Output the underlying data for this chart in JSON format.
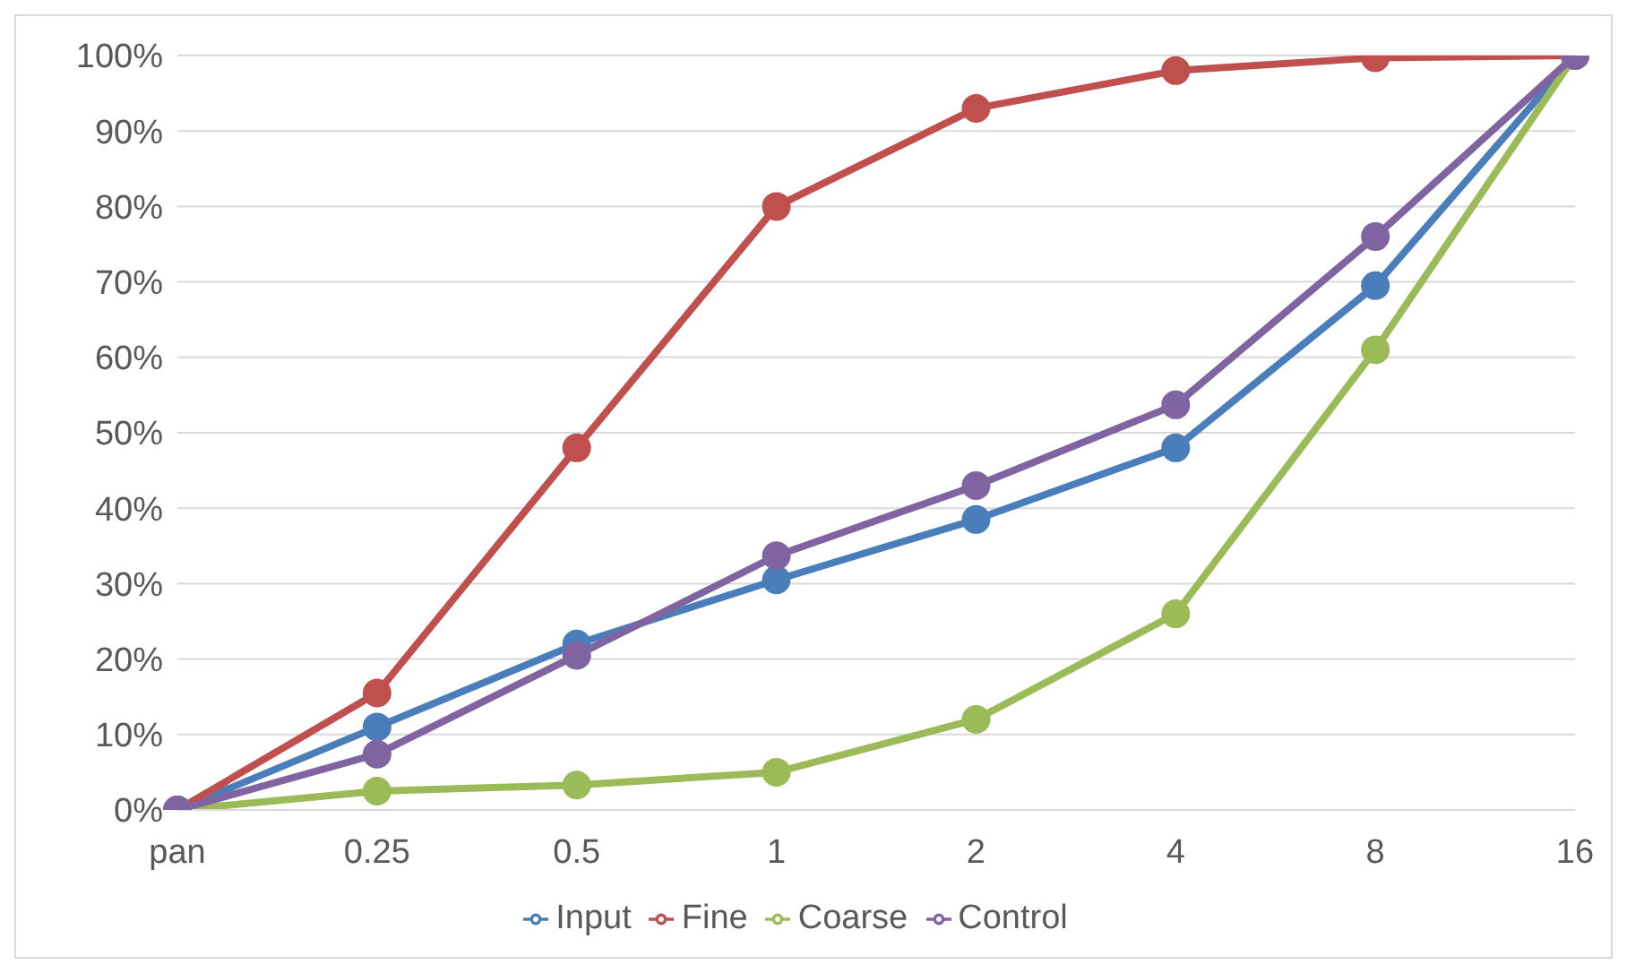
{
  "chart_data": {
    "type": "line",
    "categories": [
      "pan",
      "0.25",
      "0.5",
      "1",
      "2",
      "4",
      "8",
      "16"
    ],
    "series": [
      {
        "name": "Input",
        "color": "#4a7ebb",
        "values": [
          0,
          11,
          22,
          30.5,
          38.5,
          48,
          69.5,
          100
        ]
      },
      {
        "name": "Fine",
        "color": "#c0504d",
        "values": [
          0,
          15.5,
          48,
          80,
          93,
          98,
          99.7,
          100
        ]
      },
      {
        "name": "Coarse",
        "color": "#9bbb59",
        "values": [
          0,
          2.5,
          3.3,
          5,
          12,
          26,
          61,
          100
        ]
      },
      {
        "name": "Control",
        "color": "#8064a2",
        "values": [
          0,
          7.4,
          20.5,
          33.7,
          43,
          53.7,
          76,
          100
        ]
      }
    ],
    "ylim": [
      0,
      100
    ],
    "yticks": [
      {
        "value": 0,
        "label": "0%"
      },
      {
        "value": 10,
        "label": "10%"
      },
      {
        "value": 20,
        "label": "20%"
      },
      {
        "value": 30,
        "label": "30%"
      },
      {
        "value": 40,
        "label": "40%"
      },
      {
        "value": 50,
        "label": "50%"
      },
      {
        "value": 60,
        "label": "60%"
      },
      {
        "value": 70,
        "label": "70%"
      },
      {
        "value": 80,
        "label": "80%"
      },
      {
        "value": 90,
        "label": "90%"
      },
      {
        "value": 100,
        "label": "100%"
      }
    ],
    "grid": "y",
    "legend": "bottom",
    "marker": "circle",
    "line_style": "solid"
  }
}
